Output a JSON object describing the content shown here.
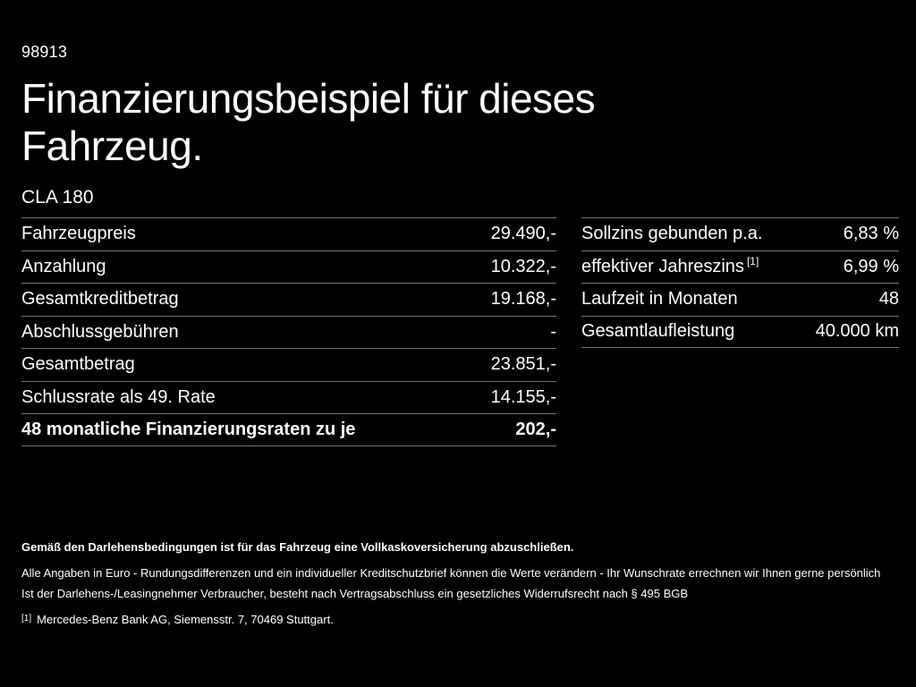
{
  "colors": {
    "background": "#000000",
    "text": "#ffffff",
    "divider": "#757575"
  },
  "header": {
    "doc_number": "98913",
    "title_line1": "Finanzierungsbeispiel für dieses",
    "title_line2": "Fahrzeug.",
    "model": "CLA 180"
  },
  "left_table": {
    "rows": [
      {
        "label": "Fahrzeugpreis",
        "value": "29.490,-"
      },
      {
        "label": "Anzahlung",
        "value": "10.322,-"
      },
      {
        "label": "Gesamtkreditbetrag",
        "value": "19.168,-"
      },
      {
        "label": "Abschlussgebühren",
        "value": "-"
      },
      {
        "label": "Gesamtbetrag",
        "value": "23.851,-"
      },
      {
        "label": "Schlussrate als 49. Rate",
        "value": "14.155,-"
      },
      {
        "label": "48 monatliche Finanzierungsraten zu je",
        "value": "202,-"
      }
    ]
  },
  "right_table": {
    "rows": [
      {
        "label": "Sollzins gebunden p.a.",
        "value": "6,83 %"
      },
      {
        "label": "effektiver Jahreszins",
        "label_sup": "[1]",
        "value": "6,99 %"
      },
      {
        "label": "Laufzeit in Monaten",
        "value": "48"
      },
      {
        "label": "Gesamtlaufleistung",
        "value": "40.000 km"
      }
    ]
  },
  "footer": {
    "bold_note": "Gemäß den Darlehensbedingungen ist für das Fahrzeug eine Vollkaskoversicherung abzuschließen.",
    "note_line1": "Alle Angaben in Euro - Rundungsdifferenzen und ein individueller Kreditschutzbrief können die Werte verändern - Ihr Wunschrate errechnen wir Ihnen gerne persönlich",
    "note_line2": "Ist der Darlehens-/Leasingnehmer Verbraucher, besteht nach Vertragsabschluss ein gesetzliches Widerrufsrecht nach § 495 BGB",
    "footnote_marker": "[1]",
    "footnote_text": "Mercedes-Benz Bank AG, Siemensstr. 7, 70469 Stuttgart."
  }
}
